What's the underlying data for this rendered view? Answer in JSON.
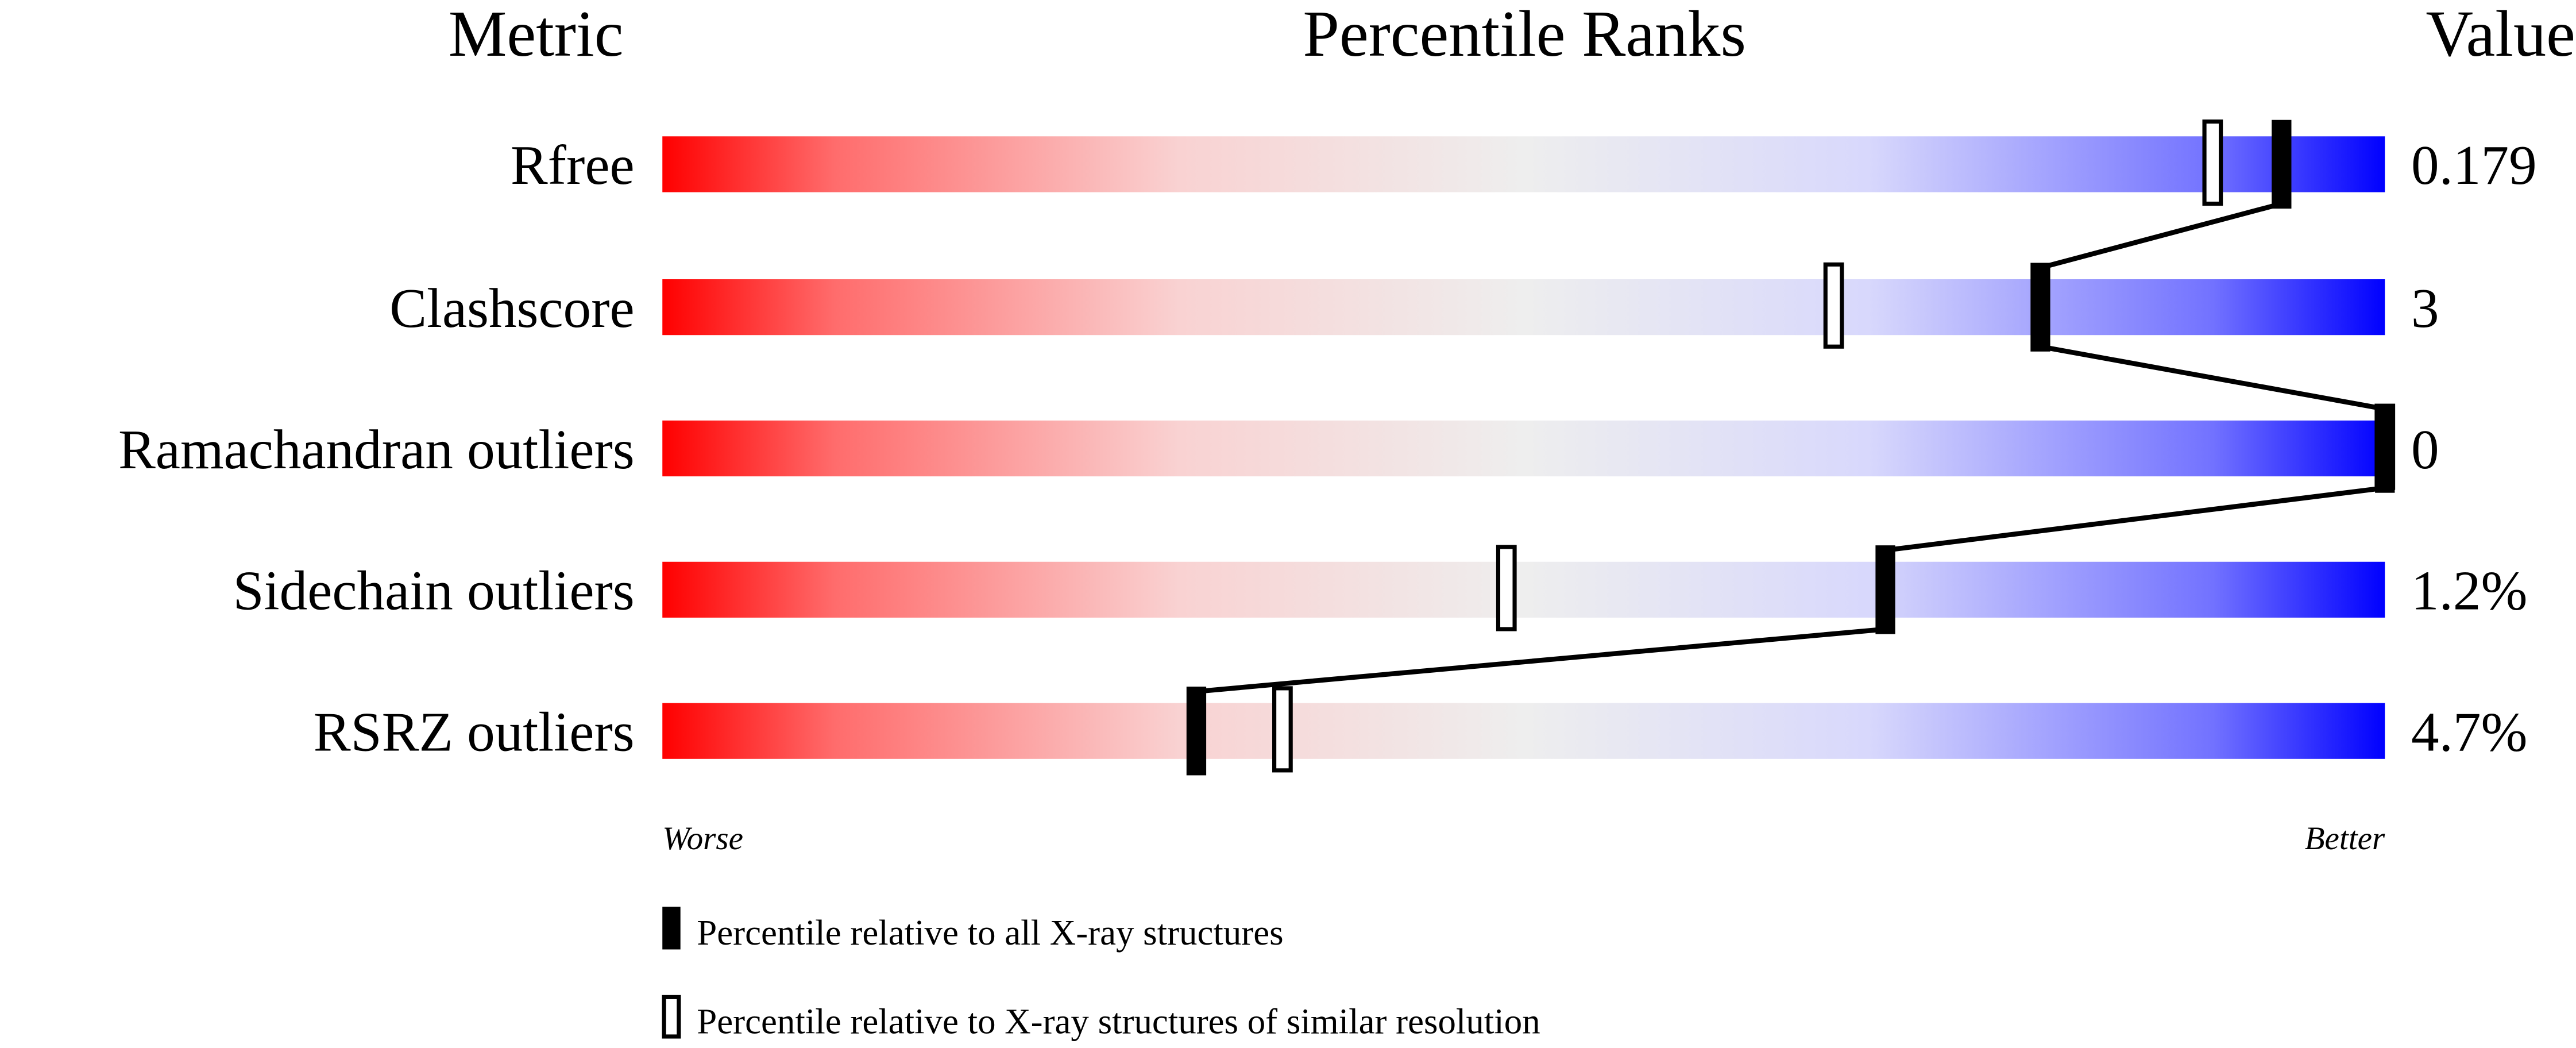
{
  "chart_data": {
    "type": "bar",
    "headers": {
      "metric": "Metric",
      "percentile": "Percentile Ranks",
      "value": "Value"
    },
    "xlim": [
      0,
      100
    ],
    "axis_labels": {
      "left": "Worse",
      "right": "Better"
    },
    "colors": {
      "worse": "#ff0000",
      "middle": "#eeeeee",
      "better": "#0000ff",
      "marker": "#000000"
    },
    "categories": [
      "Rfree",
      "Clashscore",
      "Ramachandran outliers",
      "Sidechain outliers",
      "RSRZ outliers"
    ],
    "values_text": [
      "0.179",
      "3",
      "0",
      "1.2%",
      "4.7%"
    ],
    "series": [
      {
        "name": "Percentile relative to all X-ray structures",
        "style": "filled",
        "values": [
          94,
          80,
          100,
          71,
          31
        ]
      },
      {
        "name": "Percentile relative to X-ray structures of similar resolution",
        "style": "open",
        "values": [
          90,
          68,
          100,
          49,
          36
        ]
      }
    ],
    "legend": [
      "Percentile relative to all X-ray structures",
      "Percentile relative to X-ray structures of similar resolution"
    ],
    "legend_position": "bottom",
    "grid": false
  }
}
